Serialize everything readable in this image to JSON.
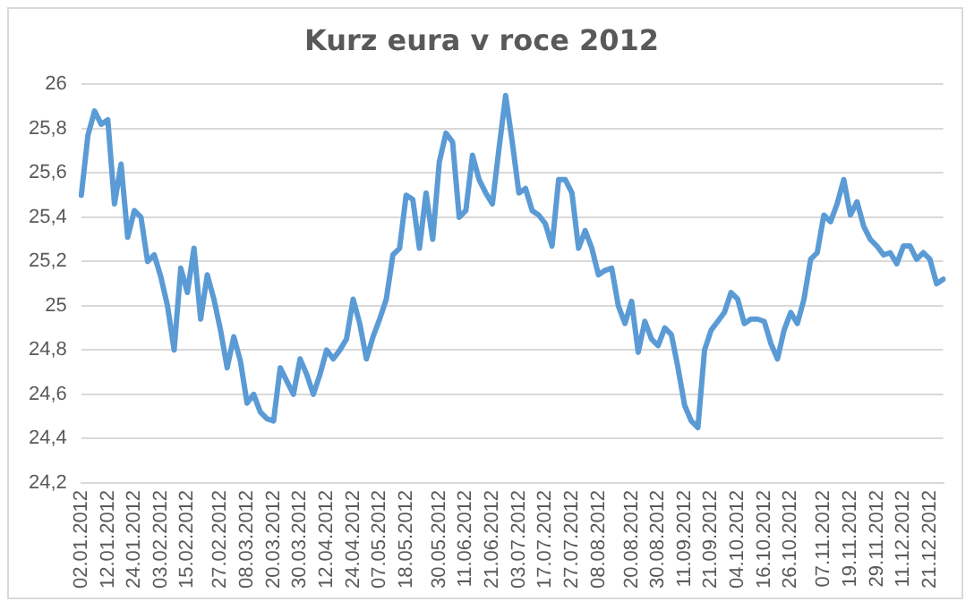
{
  "chart_data": {
    "type": "line",
    "title": "Kurz eura v roce 2012",
    "categories": [
      "02.01.2012",
      null,
      null,
      null,
      "12.01.2012",
      null,
      null,
      null,
      "24.01.2012",
      null,
      null,
      null,
      "03.02.2012",
      null,
      null,
      null,
      "15.02.2012",
      null,
      null,
      null,
      null,
      "27.02.2012",
      null,
      null,
      null,
      "08.03.2012",
      null,
      null,
      null,
      "20.03.2012",
      null,
      null,
      null,
      "30.03.2012",
      null,
      null,
      null,
      "12.04.2012",
      null,
      null,
      null,
      "24.04.2012",
      null,
      null,
      null,
      "07.05.2012",
      null,
      null,
      null,
      "18.05.2012",
      null,
      null,
      null,
      null,
      "30.05.2012",
      null,
      null,
      null,
      "11.06.2012",
      null,
      null,
      null,
      "21.06.2012",
      null,
      null,
      null,
      "03.07.2012",
      null,
      null,
      null,
      "17.07.2012",
      null,
      null,
      null,
      "27.07.2012",
      null,
      null,
      null,
      "08.08.2012",
      null,
      null,
      null,
      null,
      "20.08.2012",
      null,
      null,
      null,
      "30.08.2012",
      null,
      null,
      null,
      "11.09.2012",
      null,
      null,
      null,
      "21.09.2012",
      null,
      null,
      null,
      "04.10.2012",
      null,
      null,
      null,
      "16.10.2012",
      null,
      null,
      null,
      "26.10.2012",
      null,
      null,
      null,
      null,
      "07.11.2012",
      null,
      null,
      null,
      "19.11.2012",
      null,
      null,
      null,
      "29.11.2012",
      null,
      null,
      null,
      "11.12.2012",
      null,
      null,
      null,
      "21.12.2012",
      null,
      null
    ],
    "series": [
      {
        "color": "#5b9bd5",
        "values": [
          25.5,
          25.77,
          25.88,
          25.82,
          25.84,
          25.46,
          25.64,
          25.31,
          25.43,
          25.4,
          25.2,
          25.23,
          25.13,
          25.0,
          24.8,
          25.17,
          25.06,
          25.26,
          24.94,
          25.14,
          25.03,
          24.89,
          24.72,
          24.86,
          24.75,
          24.56,
          24.6,
          24.52,
          24.49,
          24.48,
          24.72,
          24.66,
          24.6,
          24.76,
          24.69,
          24.6,
          24.69,
          24.8,
          24.76,
          24.8,
          24.85,
          25.03,
          24.92,
          24.76,
          24.86,
          24.94,
          25.03,
          25.23,
          25.26,
          25.5,
          25.48,
          25.26,
          25.51,
          25.3,
          25.65,
          25.78,
          25.74,
          25.4,
          25.43,
          25.68,
          25.57,
          25.51,
          25.46,
          25.71,
          25.95,
          25.74,
          25.51,
          25.53,
          25.43,
          25.41,
          25.37,
          25.27,
          25.57,
          25.57,
          25.51,
          25.26,
          25.34,
          25.26,
          25.14,
          25.16,
          25.17,
          25.0,
          24.92,
          25.02,
          24.79,
          24.93,
          24.85,
          24.82,
          24.9,
          24.87,
          24.72,
          24.55,
          24.48,
          24.45,
          24.8,
          24.89,
          24.93,
          24.97,
          25.06,
          25.03,
          24.92,
          24.94,
          24.94,
          24.93,
          24.83,
          24.76,
          24.89,
          24.97,
          24.92,
          25.03,
          25.21,
          25.24,
          25.41,
          25.38,
          25.46,
          25.57,
          25.41,
          25.47,
          25.36,
          25.3,
          25.27,
          25.23,
          25.24,
          25.19,
          25.27,
          25.27,
          25.21,
          25.24,
          25.21,
          25.1,
          25.12
        ]
      }
    ],
    "ylim": [
      24.2,
      26
    ],
    "yticks": [
      {
        "value": 24.2,
        "label": "24,2"
      },
      {
        "value": 24.4,
        "label": "24,4"
      },
      {
        "value": 24.6,
        "label": "24,6"
      },
      {
        "value": 24.8,
        "label": "24,8"
      },
      25,
      {
        "value": 25.2,
        "label": "25,2"
      },
      {
        "value": 25.4,
        "label": "25,4"
      },
      {
        "value": 25.6,
        "label": "25,6"
      },
      {
        "value": 25.8,
        "label": "25,8"
      },
      26
    ],
    "grid": "y",
    "legend": false,
    "marker": "none",
    "line_style": "solid"
  }
}
